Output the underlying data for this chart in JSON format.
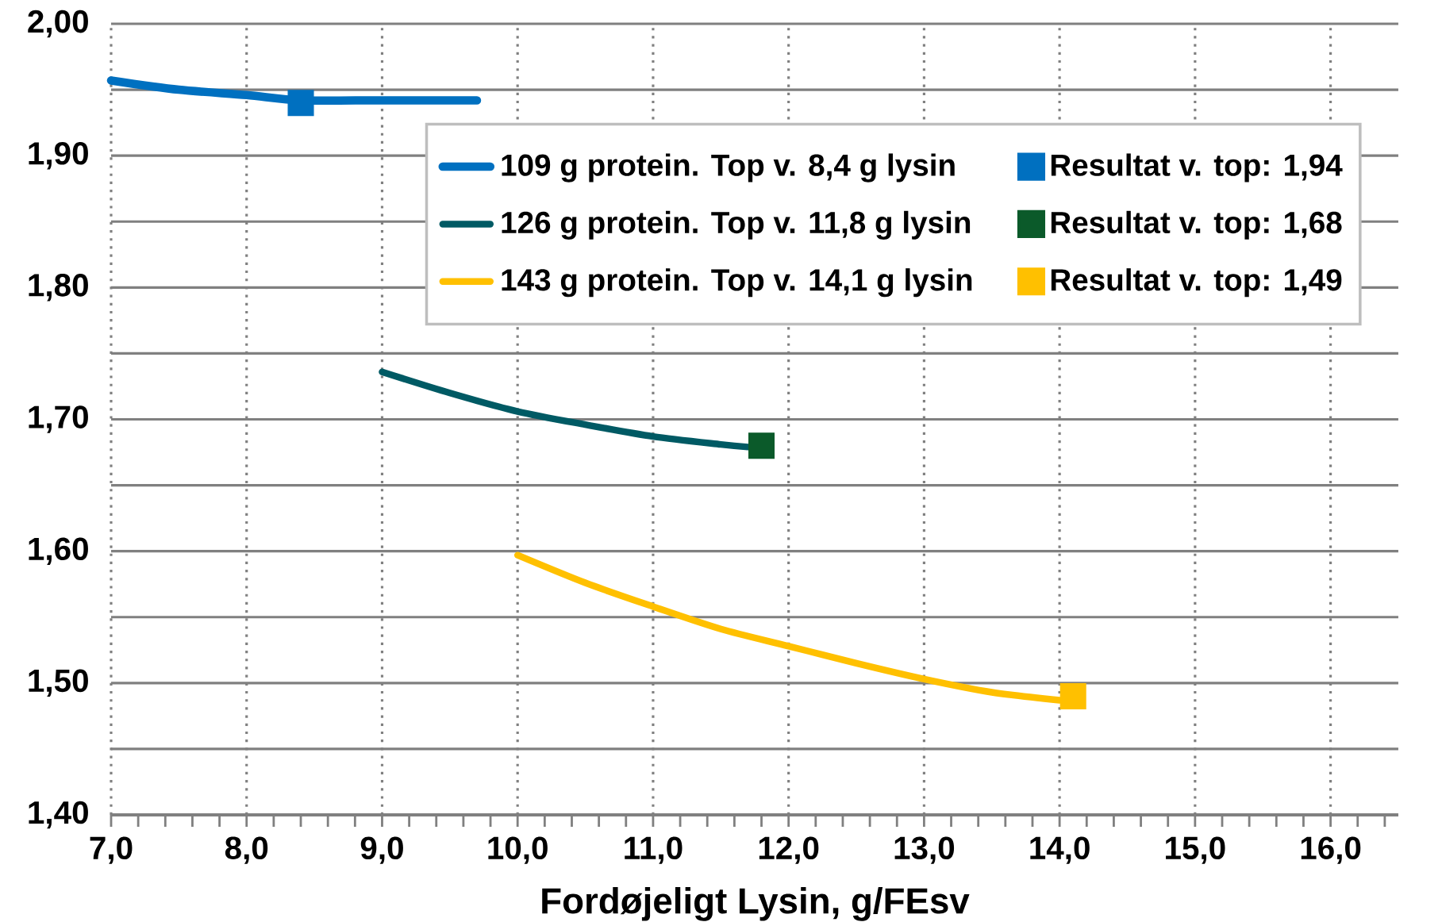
{
  "chart_data": {
    "type": "line",
    "xlabel": "Fordøjeligt Lysin, g/FEsv",
    "xlim": [
      7,
      16.5
    ],
    "ylim": [
      1.4,
      2.0
    ],
    "xticks": [
      {
        "value": 7,
        "label": "7,0"
      },
      {
        "value": 8,
        "label": "8,0"
      },
      {
        "value": 9,
        "label": "9,0"
      },
      {
        "value": 10,
        "label": "10,0"
      },
      {
        "value": 11,
        "label": "11,0"
      },
      {
        "value": 12,
        "label": "12,0"
      },
      {
        "value": 13,
        "label": "13,0"
      },
      {
        "value": 14,
        "label": "14,0"
      },
      {
        "value": 15,
        "label": "15,0"
      },
      {
        "value": 16,
        "label": "16,0"
      },
      {
        "value": 7.2,
        "label": null
      },
      {
        "value": 7.4,
        "label": null
      },
      {
        "value": 7.6,
        "label": null
      },
      {
        "value": 7.8,
        "label": null
      },
      {
        "value": 8.2,
        "label": null
      },
      {
        "value": 8.4,
        "label": null
      },
      {
        "value": 8.6,
        "label": null
      },
      {
        "value": 8.8,
        "label": null
      },
      {
        "value": 9.2,
        "label": null
      },
      {
        "value": 9.4,
        "label": null
      },
      {
        "value": 9.6,
        "label": null
      },
      {
        "value": 9.8,
        "label": null
      },
      {
        "value": 10.2,
        "label": null
      },
      {
        "value": 10.4,
        "label": null
      },
      {
        "value": 10.6,
        "label": null
      },
      {
        "value": 10.8,
        "label": null
      },
      {
        "value": 11.2,
        "label": null
      },
      {
        "value": 11.4,
        "label": null
      },
      {
        "value": 11.6,
        "label": null
      },
      {
        "value": 11.8,
        "label": null
      },
      {
        "value": 12.2,
        "label": null
      },
      {
        "value": 12.4,
        "label": null
      },
      {
        "value": 12.6,
        "label": null
      },
      {
        "value": 12.8,
        "label": null
      },
      {
        "value": 13.2,
        "label": null
      },
      {
        "value": 13.4,
        "label": null
      },
      {
        "value": 13.6,
        "label": null
      },
      {
        "value": 13.8,
        "label": null
      },
      {
        "value": 14.2,
        "label": null
      },
      {
        "value": 14.4,
        "label": null
      },
      {
        "value": 14.6,
        "label": null
      },
      {
        "value": 14.8,
        "label": null
      },
      {
        "value": 15.2,
        "label": null
      },
      {
        "value": 15.4,
        "label": null
      },
      {
        "value": 15.6,
        "label": null
      },
      {
        "value": 15.8,
        "label": null
      },
      {
        "value": 16.2,
        "label": null
      },
      {
        "value": 16.4,
        "label": null
      }
    ],
    "yticks": [
      {
        "value": 1.4,
        "label": "1,40"
      },
      {
        "value": 1.5,
        "label": "1,50"
      },
      {
        "value": 1.6,
        "label": "1,60"
      },
      {
        "value": 1.7,
        "label": "1,70"
      },
      {
        "value": 1.8,
        "label": "1,80"
      },
      {
        "value": 1.9,
        "label": "1,90"
      },
      {
        "value": 2.0,
        "label": "2,00"
      },
      {
        "value": 1.45,
        "label": null
      },
      {
        "value": 1.55,
        "label": null
      },
      {
        "value": 1.65,
        "label": null
      },
      {
        "value": 1.75,
        "label": null
      },
      {
        "value": 1.85,
        "label": null
      },
      {
        "value": 1.95,
        "label": null
      }
    ],
    "grid": true,
    "legend": "top right",
    "series": [
      {
        "name": "109 g protein. Top v. 8,4 g lysin",
        "marker": "none",
        "color": "#0070c0",
        "x": [
          7.0,
          7.5,
          8.0,
          8.4,
          9.0,
          9.7
        ],
        "values": [
          1.957,
          1.95,
          1.946,
          1.942,
          1.942,
          1.942
        ]
      },
      {
        "name": "Resultat v. top: 1,94",
        "type": "scatter",
        "marker": "square",
        "color": "#0070c0",
        "x": [
          8.4
        ],
        "values": [
          1.94
        ]
      },
      {
        "name": "126 g protein. Top v. 11,8 g lysin",
        "marker": "none",
        "color": "#005a64",
        "x": [
          9.0,
          9.5,
          10.0,
          10.5,
          11.0,
          11.5,
          11.7
        ],
        "values": [
          1.736,
          1.72,
          1.706,
          1.696,
          1.687,
          1.681,
          1.679
        ]
      },
      {
        "name": "Resultat v. top: 1,68",
        "type": "scatter",
        "marker": "square",
        "color": "#0b5a2a",
        "x": [
          11.8
        ],
        "values": [
          1.68
        ]
      },
      {
        "name": "143 g protein. Top v. 14,1 g lysin",
        "marker": "none",
        "color": "#ffc000",
        "x": [
          10.0,
          10.5,
          11.0,
          11.5,
          12.0,
          12.5,
          13.0,
          13.5,
          14.0
        ],
        "values": [
          1.597,
          1.576,
          1.558,
          1.541,
          1.528,
          1.515,
          1.503,
          1.493,
          1.487
        ]
      },
      {
        "name": "Resultat v. top: 1,49",
        "type": "scatter",
        "marker": "square",
        "color": "#ffc000",
        "x": [
          14.1
        ],
        "values": [
          1.49
        ]
      }
    ]
  }
}
